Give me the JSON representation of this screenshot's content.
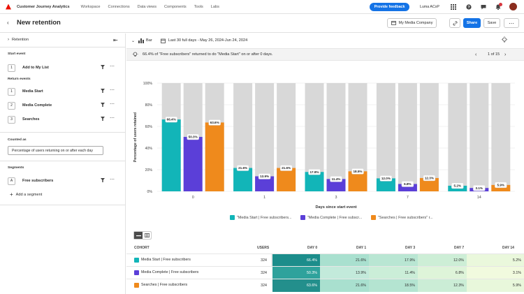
{
  "topnav": {
    "app_name": "Customer Journey Analytics",
    "items": [
      "Workspace",
      "Connections",
      "Data views",
      "Components",
      "Tools",
      "Labs"
    ],
    "feedback_label": "Provide feedback",
    "org": "Luma ACxP",
    "notification_count": "3"
  },
  "header": {
    "title": "New retention",
    "company_label": "My Media Company",
    "share_label": "Share",
    "save_label": "Save"
  },
  "panel": {
    "title": "Retention",
    "start_event_heading": "Start event",
    "start_event": {
      "num": "1",
      "label": "Add to My List"
    },
    "return_events_heading": "Return events",
    "return_events": [
      {
        "num": "1",
        "label": "Media Start"
      },
      {
        "num": "2",
        "label": "Media Complete"
      },
      {
        "num": "3",
        "label": "Searches"
      }
    ],
    "counted_as_heading": "Counted as",
    "counted_as_value": "Percentage of users returning on or after each day",
    "segments_heading": "Segments",
    "segment": {
      "num": "A",
      "label": "Free subscribers"
    },
    "add_segment_label": "Add a segment"
  },
  "toolbar": {
    "viz_type": "Bar",
    "date_range": "Last 30 full days - May 26, 2024-Jun 24, 2024"
  },
  "insight": {
    "text": "66.4% of \"Free subscribers\" returned to do \"Media Start\" on or after 0 days.",
    "pager": "1 of 15"
  },
  "colors": {
    "teal": "#12b5b8",
    "purple": "#5b3fd8",
    "orange": "#ef8a1c",
    "gray": "#d8d8d8"
  },
  "chart_data": {
    "type": "bar",
    "ylabel": "Percentage of users retained",
    "xlabel": "Days since start event",
    "ylim": [
      0,
      100
    ],
    "y_ticks": [
      "0%",
      "20%",
      "40%",
      "60%",
      "80%",
      "100%"
    ],
    "categories": [
      "0",
      "1",
      "3",
      "7",
      "14"
    ],
    "series": [
      {
        "name": "\"Media Start | Free subscribers...",
        "color": "#12b5b8",
        "values": [
          66.4,
          21.6,
          17.9,
          12.0,
          5.2
        ],
        "labels": [
          "66.4%",
          "21.6%",
          "17.9%",
          "12.0%",
          "5.2%"
        ]
      },
      {
        "name": "\"Media Complete | Free subscr...",
        "color": "#5b3fd8",
        "values": [
          50.3,
          13.9,
          11.4,
          6.8,
          3.1
        ],
        "labels": [
          "50.3%",
          "13.9%",
          "11.4%",
          "6.8%",
          "3.1%"
        ]
      },
      {
        "name": "\"Searches | Free subscribers\" r...",
        "color": "#ef8a1c",
        "values": [
          63.6,
          21.6,
          18.5,
          12.3,
          5.9
        ],
        "labels": [
          "63.6%",
          "21.6%",
          "18.5%",
          "12.3%",
          "5.9%"
        ]
      }
    ]
  },
  "table": {
    "headers": [
      "COHORT",
      "USERS",
      "DAY 0",
      "DAY 1",
      "DAY 3",
      "DAY 7",
      "DAY 14"
    ],
    "rows": [
      {
        "name": "Media Start | Free subscribers",
        "color": "#12b5b8",
        "users": "324",
        "cells": [
          "66.4%",
          "21.6%",
          "17.9%",
          "12.0%",
          "5.2%"
        ]
      },
      {
        "name": "Media Complete | Free subscribers",
        "color": "#5b3fd8",
        "users": "324",
        "cells": [
          "50.3%",
          "13.9%",
          "11.4%",
          "6.8%",
          "3.1%"
        ]
      },
      {
        "name": "Searches | Free subscribers",
        "color": "#ef8a1c",
        "users": "324",
        "cells": [
          "63.6%",
          "21.6%",
          "18.5%",
          "12.3%",
          "5.9%"
        ]
      }
    ]
  }
}
